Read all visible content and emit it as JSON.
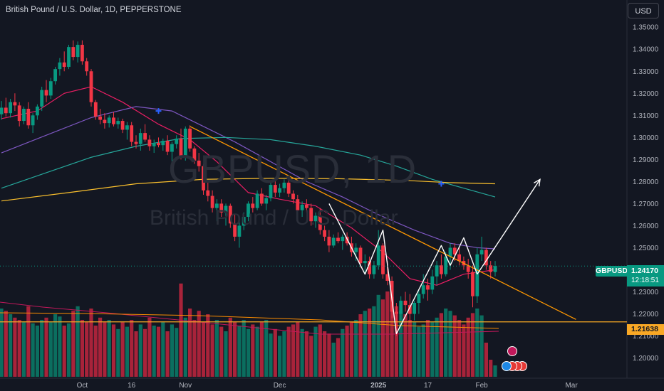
{
  "header": {
    "title": "British Pound / U.S. Dollar, 1D, PEPPERSTONE",
    "currency_button": "USD"
  },
  "watermark": {
    "symbol": "GBPUSD, 1D",
    "description": "British Pound / U.S. Dollar"
  },
  "price_tags": {
    "symbol": "GBPUSD",
    "last_price": "1.24170",
    "countdown": "12:18:51",
    "line_price": "1.21638"
  },
  "colors": {
    "background": "#131722",
    "up": "#089981",
    "down": "#f23645",
    "ma_short": "#e91e63",
    "ma_medium": "#7e57c2",
    "ma_long": "#26a69a",
    "ma_longest": "#fbc02d",
    "trendline": "#ff9800",
    "horizontal_line": "#f9a825",
    "drawing": "#ffffff",
    "cross_marker": "#2962ff"
  },
  "chart_data": {
    "type": "candlestick",
    "symbol": "GBPUSD",
    "timeframe": "1D",
    "y_axis": {
      "range": [
        1.196,
        1.352
      ],
      "ticks": [
        "1.35000",
        "1.34000",
        "1.33000",
        "1.32000",
        "1.31000",
        "1.30000",
        "1.29000",
        "1.28000",
        "1.27000",
        "1.26000",
        "1.25000",
        "1.24000",
        "1.23000",
        "1.22000",
        "1.21000",
        "1.20000"
      ]
    },
    "x_axis": {
      "ticks": [
        {
          "label": "Oct",
          "bar": 18
        },
        {
          "label": "16",
          "bar": 29
        },
        {
          "label": "Nov",
          "bar": 41
        },
        {
          "label": "Dec",
          "bar": 62
        },
        {
          "label": "2025",
          "bar": 84
        },
        {
          "label": "17",
          "bar": 95
        },
        {
          "label": "Feb",
          "bar": 107
        },
        {
          "label": "Mar",
          "bar": 127
        }
      ]
    },
    "candles": [
      [
        1.3105,
        1.3165,
        1.308,
        1.3135
      ],
      [
        1.3135,
        1.318,
        1.3095,
        1.311
      ],
      [
        1.311,
        1.3175,
        1.309,
        1.316
      ],
      [
        1.316,
        1.32,
        1.312,
        1.3145
      ],
      [
        1.3145,
        1.316,
        1.305,
        1.3075
      ],
      [
        1.3075,
        1.314,
        1.306,
        1.313
      ],
      [
        1.313,
        1.316,
        1.304,
        1.3055
      ],
      [
        1.3055,
        1.311,
        1.302,
        1.31
      ],
      [
        1.31,
        1.315,
        1.308,
        1.314
      ],
      [
        1.314,
        1.323,
        1.312,
        1.3215
      ],
      [
        1.3215,
        1.326,
        1.316,
        1.319
      ],
      [
        1.319,
        1.327,
        1.3175,
        1.3255
      ],
      [
        1.3255,
        1.332,
        1.324,
        1.331
      ],
      [
        1.331,
        1.336,
        1.328,
        1.334
      ],
      [
        1.334,
        1.339,
        1.33,
        1.332
      ],
      [
        1.332,
        1.342,
        1.331,
        1.341
      ],
      [
        1.341,
        1.344,
        1.335,
        1.3365
      ],
      [
        1.3365,
        1.3435,
        1.334,
        1.342
      ],
      [
        1.342,
        1.344,
        1.333,
        1.3345
      ],
      [
        1.3345,
        1.336,
        1.328,
        1.33
      ],
      [
        1.33,
        1.331,
        1.314,
        1.316
      ],
      [
        1.316,
        1.317,
        1.308,
        1.3095
      ],
      [
        1.3095,
        1.313,
        1.306,
        1.308
      ],
      [
        1.308,
        1.311,
        1.304,
        1.3065
      ],
      [
        1.3065,
        1.31,
        1.3045,
        1.309
      ],
      [
        1.309,
        1.3115,
        1.305,
        1.306
      ],
      [
        1.306,
        1.309,
        1.304,
        1.3075
      ],
      [
        1.3075,
        1.3085,
        1.302,
        1.3035
      ],
      [
        1.3035,
        1.307,
        1.299,
        1.3055
      ],
      [
        1.3055,
        1.307,
        1.296,
        1.298
      ],
      [
        1.298,
        1.301,
        1.295,
        1.297
      ],
      [
        1.297,
        1.304,
        1.294,
        1.302
      ],
      [
        1.302,
        1.306,
        1.298,
        1.299
      ],
      [
        1.299,
        1.301,
        1.294,
        1.296
      ],
      [
        1.296,
        1.299,
        1.293,
        1.2975
      ],
      [
        1.2975,
        1.3,
        1.2955,
        1.2965
      ],
      [
        1.2965,
        1.2995,
        1.294,
        1.2985
      ],
      [
        1.2985,
        1.301,
        1.292,
        1.2935
      ],
      [
        1.2935,
        1.298,
        1.288,
        1.297
      ],
      [
        1.297,
        1.301,
        1.295,
        1.2995
      ],
      [
        1.2995,
        1.304,
        1.29,
        1.291
      ],
      [
        1.291,
        1.305,
        1.2895,
        1.304
      ],
      [
        1.304,
        1.3055,
        1.2935,
        1.295
      ],
      [
        1.295,
        1.296,
        1.288,
        1.2895
      ],
      [
        1.2895,
        1.293,
        1.2845,
        1.287
      ],
      [
        1.287,
        1.288,
        1.274,
        1.276
      ],
      [
        1.276,
        1.28,
        1.271,
        1.2735
      ],
      [
        1.2735,
        1.276,
        1.266,
        1.268
      ],
      [
        1.268,
        1.272,
        1.262,
        1.27
      ],
      [
        1.27,
        1.272,
        1.264,
        1.266
      ],
      [
        1.266,
        1.27,
        1.26,
        1.269
      ],
      [
        1.269,
        1.27,
        1.259,
        1.261
      ],
      [
        1.261,
        1.265,
        1.253,
        1.255
      ],
      [
        1.255,
        1.262,
        1.25,
        1.26
      ],
      [
        1.26,
        1.266,
        1.258,
        1.264
      ],
      [
        1.264,
        1.271,
        1.262,
        1.27
      ],
      [
        1.27,
        1.273,
        1.266,
        1.268
      ],
      [
        1.268,
        1.276,
        1.267,
        1.2745
      ],
      [
        1.2745,
        1.277,
        1.269,
        1.27
      ],
      [
        1.27,
        1.274,
        1.267,
        1.2725
      ],
      [
        1.2725,
        1.28,
        1.271,
        1.2785
      ],
      [
        1.2785,
        1.281,
        1.273,
        1.275
      ],
      [
        1.275,
        1.279,
        1.273,
        1.277
      ],
      [
        1.277,
        1.281,
        1.275,
        1.2795
      ],
      [
        1.2795,
        1.2805,
        1.273,
        1.2745
      ],
      [
        1.2745,
        1.276,
        1.27,
        1.272
      ],
      [
        1.272,
        1.274,
        1.265,
        1.267
      ],
      [
        1.267,
        1.271,
        1.264,
        1.2695
      ],
      [
        1.2695,
        1.272,
        1.266,
        1.268
      ],
      [
        1.268,
        1.27,
        1.26,
        1.262
      ],
      [
        1.262,
        1.266,
        1.259,
        1.2645
      ],
      [
        1.2645,
        1.268,
        1.256,
        1.258
      ],
      [
        1.258,
        1.26,
        1.253,
        1.255
      ],
      [
        1.255,
        1.258,
        1.248,
        1.251
      ],
      [
        1.251,
        1.256,
        1.25,
        1.2545
      ],
      [
        1.2545,
        1.257,
        1.252,
        1.253
      ],
      [
        1.253,
        1.256,
        1.249,
        1.255
      ],
      [
        1.255,
        1.257,
        1.251,
        1.252
      ],
      [
        1.252,
        1.255,
        1.246,
        1.248
      ],
      [
        1.248,
        1.252,
        1.244,
        1.25
      ],
      [
        1.25,
        1.251,
        1.241,
        1.243
      ],
      [
        1.243,
        1.247,
        1.238,
        1.244
      ],
      [
        1.244,
        1.246,
        1.236,
        1.238
      ],
      [
        1.238,
        1.244,
        1.236,
        1.242
      ],
      [
        1.242,
        1.258,
        1.24,
        1.251
      ],
      [
        1.251,
        1.252,
        1.236,
        1.238
      ],
      [
        1.238,
        1.244,
        1.233,
        1.235
      ],
      [
        1.235,
        1.237,
        1.218,
        1.221
      ],
      [
        1.221,
        1.225,
        1.21,
        1.22
      ],
      [
        1.22,
        1.228,
        1.217,
        1.226
      ],
      [
        1.226,
        1.23,
        1.221,
        1.224
      ],
      [
        1.224,
        1.229,
        1.216,
        1.22
      ],
      [
        1.22,
        1.226,
        1.217,
        1.225
      ],
      [
        1.225,
        1.231,
        1.22,
        1.229
      ],
      [
        1.229,
        1.238,
        1.227,
        1.233
      ],
      [
        1.233,
        1.236,
        1.226,
        1.231
      ],
      [
        1.231,
        1.24,
        1.229,
        1.237
      ],
      [
        1.237,
        1.244,
        1.233,
        1.242
      ],
      [
        1.242,
        1.247,
        1.236,
        1.238
      ],
      [
        1.238,
        1.248,
        1.237,
        1.246
      ],
      [
        1.246,
        1.252,
        1.24,
        1.25
      ],
      [
        1.25,
        1.252,
        1.244,
        1.247
      ],
      [
        1.247,
        1.25,
        1.242,
        1.244
      ],
      [
        1.244,
        1.246,
        1.24,
        1.242
      ],
      [
        1.242,
        1.245,
        1.236,
        1.239
      ],
      [
        1.239,
        1.242,
        1.223,
        1.228
      ],
      [
        1.228,
        1.25,
        1.225,
        1.247
      ],
      [
        1.247,
        1.255,
        1.244,
        1.249
      ],
      [
        1.249,
        1.25,
        1.24,
        1.242
      ],
      [
        1.242,
        1.244,
        1.236,
        1.239
      ],
      [
        1.239,
        1.244,
        1.237,
        1.2417
      ]
    ],
    "volume": [
      0.6,
      0.58,
      0.55,
      0.52,
      0.5,
      0.48,
      0.62,
      0.47,
      0.45,
      0.5,
      0.52,
      0.48,
      0.55,
      0.53,
      0.45,
      0.47,
      0.58,
      0.62,
      0.5,
      0.48,
      0.6,
      0.45,
      0.52,
      0.48,
      0.5,
      0.46,
      0.42,
      0.48,
      0.44,
      0.5,
      0.4,
      0.46,
      0.42,
      0.52,
      0.45,
      0.44,
      0.48,
      0.4,
      0.46,
      0.43,
      0.82,
      0.52,
      0.6,
      0.5,
      0.58,
      0.48,
      0.55,
      0.46,
      0.5,
      0.44,
      0.4,
      0.52,
      0.48,
      0.45,
      0.5,
      0.42,
      0.46,
      0.44,
      0.48,
      0.5,
      0.38,
      0.42,
      0.36,
      0.4,
      0.44,
      0.46,
      0.48,
      0.42,
      0.4,
      0.36,
      0.44,
      0.46,
      0.4,
      0.38,
      0.3,
      0.34,
      0.42,
      0.45,
      0.48,
      0.5,
      0.55,
      0.58,
      0.6,
      0.62,
      0.72,
      0.68,
      0.75,
      0.7,
      0.62,
      0.58,
      0.55,
      0.5,
      0.48,
      0.44,
      0.46,
      0.5,
      0.48,
      0.52,
      0.56,
      0.6,
      0.58,
      0.54,
      0.5,
      0.46,
      0.52,
      0.56,
      0.6,
      0.54,
      0.3,
      0.15,
      0.1
    ],
    "moving_averages": [
      {
        "color": "ma_short",
        "points": [
          [
            0,
            1.3085
          ],
          [
            8,
            1.312
          ],
          [
            14,
            1.32
          ],
          [
            20,
            1.323
          ],
          [
            27,
            1.316
          ],
          [
            35,
            1.306
          ],
          [
            42,
            1.299
          ],
          [
            48,
            1.289
          ],
          [
            55,
            1.275
          ],
          [
            62,
            1.272
          ],
          [
            70,
            1.269
          ],
          [
            78,
            1.259
          ],
          [
            85,
            1.248
          ],
          [
            91,
            1.236
          ],
          [
            97,
            1.233
          ],
          [
            103,
            1.238
          ],
          [
            110,
            1.24
          ]
        ]
      },
      {
        "color": "ma_medium",
        "points": [
          [
            0,
            1.293
          ],
          [
            10,
            1.301
          ],
          [
            20,
            1.309
          ],
          [
            30,
            1.314
          ],
          [
            38,
            1.312
          ],
          [
            45,
            1.305
          ],
          [
            52,
            1.298
          ],
          [
            60,
            1.289
          ],
          [
            68,
            1.28
          ],
          [
            76,
            1.273
          ],
          [
            84,
            1.265
          ],
          [
            92,
            1.258
          ],
          [
            100,
            1.252
          ],
          [
            106,
            1.25
          ],
          [
            110,
            1.2495
          ]
        ]
      },
      {
        "color": "ma_long",
        "points": [
          [
            0,
            1.277
          ],
          [
            10,
            1.284
          ],
          [
            20,
            1.291
          ],
          [
            30,
            1.296
          ],
          [
            40,
            1.2995
          ],
          [
            50,
            1.3
          ],
          [
            60,
            1.299
          ],
          [
            70,
            1.296
          ],
          [
            80,
            1.292
          ],
          [
            88,
            1.287
          ],
          [
            96,
            1.281
          ],
          [
            103,
            1.277
          ],
          [
            110,
            1.273
          ]
        ]
      },
      {
        "color": "ma_longest",
        "points": [
          [
            0,
            1.2712
          ],
          [
            15,
            1.275
          ],
          [
            30,
            1.279
          ],
          [
            45,
            1.281
          ],
          [
            60,
            1.2815
          ],
          [
            75,
            1.2813
          ],
          [
            90,
            1.2805
          ],
          [
            100,
            1.2795
          ],
          [
            110,
            1.279
          ]
        ]
      }
    ],
    "trendline": [
      [
        42,
        1.305
      ],
      [
        128,
        1.2175
      ]
    ],
    "horizontal_line": 1.21638,
    "zigzag": [
      [
        73,
        1.27
      ],
      [
        81,
        1.238
      ],
      [
        85,
        1.258
      ],
      [
        88,
        1.211
      ],
      [
        98,
        1.251
      ],
      [
        100,
        1.242
      ],
      [
        103,
        1.2545
      ],
      [
        106,
        1.238
      ]
    ],
    "projection_arrow": [
      [
        106,
        1.238
      ],
      [
        120,
        1.281
      ]
    ],
    "cross_markers": [
      [
        35,
        1.312
      ],
      [
        98,
        1.279
      ]
    ],
    "legend": "none",
    "grid": false
  }
}
